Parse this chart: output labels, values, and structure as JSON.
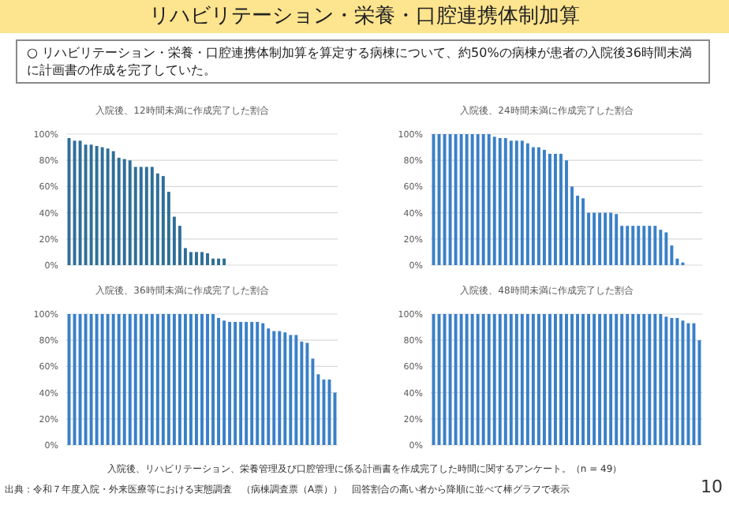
{
  "chart_data": [
    {
      "type": "other",
      "title": "リハビリテーション・栄養・口腔連携体制加算",
      "subtitle": "○ リハビリテーション・栄養・口腔連携体制加算を算定する病棟について、約50%の病棟が患者の入院後36時間未満に計画書の作成を完了していた。",
      "annotations": [
        "入院後、リハビリテーション、栄養管理及び口腔管理に係る計画書を作成完了した時間に関するアンケート。（n = 49）",
        "出典：令和７年度入院・外来医療等における実態調査　（病棟調査票（A票））　回答割合の高い者から降順に並べて棒グラフで表示",
        "10"
      ]
    },
    {
      "type": "bar",
      "title": "入院後、12時間未満に作成完了した割合",
      "color": "#2f6f98",
      "grid": "y",
      "tick_labels": "y",
      "ylim": [
        0,
        100
      ],
      "yticks": [
        {
          "value": 0,
          "label": "0%"
        },
        {
          "value": 20,
          "label": "20%"
        },
        {
          "value": 40,
          "label": "40%"
        },
        {
          "value": 60,
          "label": "60%"
        },
        {
          "value": 80,
          "label": "80%"
        },
        {
          "value": 100,
          "label": "100%"
        }
      ],
      "categories": [
        null,
        null,
        null,
        null,
        null,
        null,
        null,
        null,
        null,
        null,
        null,
        null,
        null,
        null,
        null,
        null,
        null,
        null,
        null,
        null,
        null,
        null,
        null,
        null,
        null,
        null,
        null,
        null,
        null,
        null,
        null,
        null,
        null,
        null,
        null,
        null,
        null,
        null,
        null,
        null,
        null,
        null,
        null,
        null,
        null,
        null,
        null,
        null,
        null
      ],
      "values": [
        97,
        95,
        95,
        92,
        92,
        91,
        90,
        89,
        87,
        82,
        81,
        80,
        75,
        75,
        75,
        75,
        70,
        68,
        56,
        37,
        30,
        13,
        10,
        10,
        10,
        9,
        5,
        5,
        5,
        0,
        0,
        0,
        0,
        0,
        0,
        0,
        0,
        0,
        0,
        0,
        0,
        0,
        0,
        0,
        0,
        0,
        0,
        0,
        0
      ]
    },
    {
      "type": "bar",
      "title": "入院後、24時間未満に作成完了した割合",
      "color": "#3a80c8",
      "grid": "y",
      "tick_labels": "y",
      "ylim": [
        0,
        100
      ],
      "yticks": [
        {
          "value": 0,
          "label": "0%"
        },
        {
          "value": 20,
          "label": "20%"
        },
        {
          "value": 40,
          "label": "40%"
        },
        {
          "value": 60,
          "label": "60%"
        },
        {
          "value": 80,
          "label": "80%"
        },
        {
          "value": 100,
          "label": "100%"
        }
      ],
      "categories": [
        null,
        null,
        null,
        null,
        null,
        null,
        null,
        null,
        null,
        null,
        null,
        null,
        null,
        null,
        null,
        null,
        null,
        null,
        null,
        null,
        null,
        null,
        null,
        null,
        null,
        null,
        null,
        null,
        null,
        null,
        null,
        null,
        null,
        null,
        null,
        null,
        null,
        null,
        null,
        null,
        null,
        null,
        null,
        null,
        null,
        null,
        null,
        null,
        null
      ],
      "values": [
        100,
        100,
        100,
        100,
        100,
        100,
        100,
        100,
        100,
        100,
        100,
        98,
        97,
        97,
        95,
        95,
        95,
        93,
        90,
        90,
        88,
        85,
        85,
        85,
        80,
        60,
        53,
        51,
        40,
        40,
        40,
        40,
        40,
        39,
        30,
        30,
        30,
        30,
        30,
        30,
        30,
        27,
        25,
        15,
        5,
        2,
        0,
        0,
        0
      ]
    },
    {
      "type": "bar",
      "title": "入院後、36時間未満に作成完了した割合",
      "color": "#3a80c8",
      "grid": "y",
      "tick_labels": "y",
      "ylim": [
        0,
        100
      ],
      "yticks": [
        {
          "value": 0,
          "label": "0%"
        },
        {
          "value": 20,
          "label": "20%"
        },
        {
          "value": 40,
          "label": "40%"
        },
        {
          "value": 60,
          "label": "60%"
        },
        {
          "value": 80,
          "label": "80%"
        },
        {
          "value": 100,
          "label": "100%"
        }
      ],
      "categories": [
        null,
        null,
        null,
        null,
        null,
        null,
        null,
        null,
        null,
        null,
        null,
        null,
        null,
        null,
        null,
        null,
        null,
        null,
        null,
        null,
        null,
        null,
        null,
        null,
        null,
        null,
        null,
        null,
        null,
        null,
        null,
        null,
        null,
        null,
        null,
        null,
        null,
        null,
        null,
        null,
        null,
        null,
        null,
        null,
        null,
        null,
        null,
        null,
        null
      ],
      "values": [
        100,
        100,
        100,
        100,
        100,
        100,
        100,
        100,
        100,
        100,
        100,
        100,
        100,
        100,
        100,
        100,
        100,
        100,
        100,
        100,
        100,
        100,
        100,
        100,
        100,
        100,
        100,
        97,
        95,
        94,
        94,
        94,
        94,
        94,
        94,
        93,
        89,
        87,
        87,
        86,
        84,
        84,
        79,
        78,
        66,
        54,
        50,
        50,
        40
      ]
    },
    {
      "type": "bar",
      "title": "入院後、48時間未満に作成完了した割合",
      "color": "#3a80c8",
      "grid": "y",
      "tick_labels": "y",
      "ylim": [
        0,
        100
      ],
      "yticks": [
        {
          "value": 0,
          "label": "0%"
        },
        {
          "value": 20,
          "label": "20%"
        },
        {
          "value": 40,
          "label": "40%"
        },
        {
          "value": 60,
          "label": "60%"
        },
        {
          "value": 80,
          "label": "80%"
        },
        {
          "value": 100,
          "label": "100%"
        }
      ],
      "categories": [
        null,
        null,
        null,
        null,
        null,
        null,
        null,
        null,
        null,
        null,
        null,
        null,
        null,
        null,
        null,
        null,
        null,
        null,
        null,
        null,
        null,
        null,
        null,
        null,
        null,
        null,
        null,
        null,
        null,
        null,
        null,
        null,
        null,
        null,
        null,
        null,
        null,
        null,
        null,
        null,
        null,
        null,
        null,
        null,
        null,
        null,
        null,
        null,
        null
      ],
      "values": [
        100,
        100,
        100,
        100,
        100,
        100,
        100,
        100,
        100,
        100,
        100,
        100,
        100,
        100,
        100,
        100,
        100,
        100,
        100,
        100,
        100,
        100,
        100,
        100,
        100,
        100,
        100,
        100,
        100,
        100,
        100,
        100,
        100,
        100,
        100,
        100,
        100,
        100,
        100,
        100,
        100,
        100,
        98,
        97,
        97,
        95,
        93,
        93,
        80
      ]
    }
  ]
}
